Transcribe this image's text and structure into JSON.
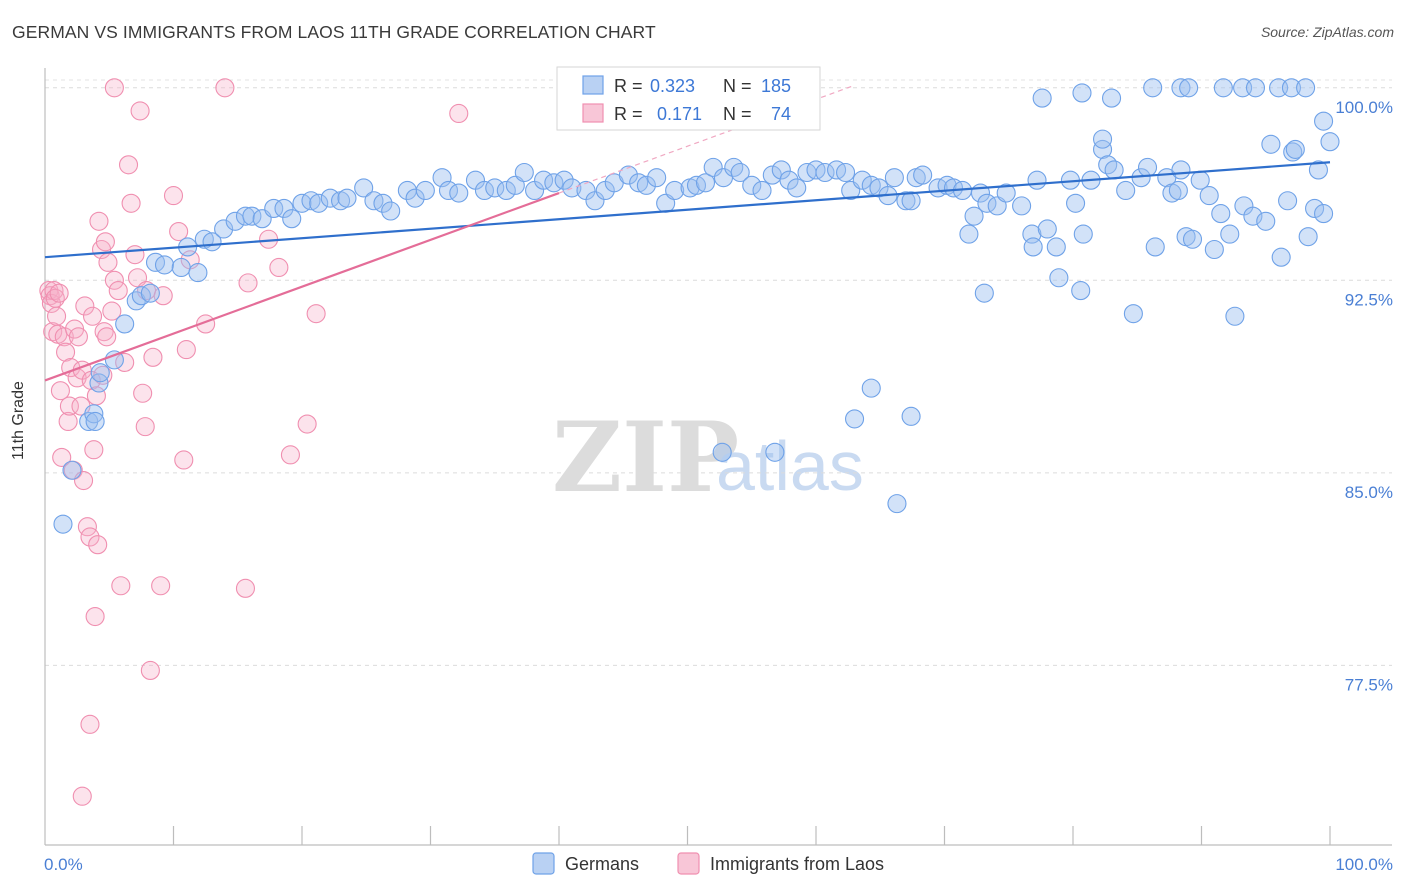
{
  "title": "GERMAN VS IMMIGRANTS FROM LAOS 11TH GRADE CORRELATION CHART",
  "source": "Source: ZipAtlas.com",
  "watermark": {
    "zip": "ZIP",
    "atlas": "atlas"
  },
  "colors": {
    "german": "#6fa2e8",
    "laos": "#f08fb0",
    "german_line": "#2f6fcc",
    "laos_line": "#e46d98",
    "accent": "#4a7fd4"
  },
  "stats": {
    "german": {
      "r_label": "R =",
      "r_value": "0.323",
      "n_label": "N =",
      "n_value": "185"
    },
    "laos": {
      "r_label": "R =",
      "r_value": "0.171",
      "n_label": "N =",
      "n_value": "74"
    }
  },
  "legend": {
    "german": "Germans",
    "laos": "Immigrants from Laos"
  },
  "chart_data": {
    "type": "scatter",
    "title": "GERMAN VS IMMIGRANTS FROM LAOS 11TH GRADE CORRELATION CHART",
    "xlabel": "",
    "ylabel": "11th Grade",
    "xlim": [
      0,
      100
    ],
    "ylim": [
      70.5,
      101.2
    ],
    "x_tick_labels": [
      "0.0%",
      "100.0%"
    ],
    "y_ticks": [
      77.5,
      85.0,
      92.5,
      100.0
    ],
    "y_tick_labels": [
      "77.5%",
      "85.0%",
      "92.5%",
      "100.0%"
    ],
    "grid": true,
    "legend_position": "bottom-center",
    "series": [
      {
        "name": "Germans",
        "r": 0.323,
        "n": 185,
        "trend": {
          "x": [
            0,
            100
          ],
          "y": [
            93.4,
            97.1
          ]
        },
        "points": [
          [
            1.4,
            83.0
          ],
          [
            2.1,
            85.1
          ],
          [
            3.4,
            87.0
          ],
          [
            3.8,
            87.3
          ],
          [
            3.9,
            87.0
          ],
          [
            4.2,
            88.5
          ],
          [
            4.3,
            88.9
          ],
          [
            5.4,
            89.4
          ],
          [
            6.2,
            90.8
          ],
          [
            7.1,
            91.7
          ],
          [
            7.5,
            91.9
          ],
          [
            8.2,
            92.0
          ],
          [
            8.6,
            93.2
          ],
          [
            9.3,
            93.1
          ],
          [
            10.6,
            93.0
          ],
          [
            11.1,
            93.8
          ],
          [
            11.9,
            92.8
          ],
          [
            12.4,
            94.1
          ],
          [
            13.0,
            94.0
          ],
          [
            13.9,
            94.5
          ],
          [
            14.8,
            94.8
          ],
          [
            15.6,
            95.0
          ],
          [
            16.1,
            95.0
          ],
          [
            16.9,
            94.9
          ],
          [
            17.8,
            95.3
          ],
          [
            18.6,
            95.3
          ],
          [
            19.2,
            94.9
          ],
          [
            20.0,
            95.5
          ],
          [
            20.7,
            95.6
          ],
          [
            21.3,
            95.5
          ],
          [
            22.2,
            95.7
          ],
          [
            23.0,
            95.6
          ],
          [
            23.5,
            95.7
          ],
          [
            24.8,
            96.1
          ],
          [
            25.6,
            95.6
          ],
          [
            26.3,
            95.5
          ],
          [
            26.9,
            95.2
          ],
          [
            28.2,
            96.0
          ],
          [
            28.8,
            95.7
          ],
          [
            29.6,
            96.0
          ],
          [
            30.9,
            96.5
          ],
          [
            31.4,
            96.0
          ],
          [
            32.2,
            95.9
          ],
          [
            33.5,
            96.4
          ],
          [
            34.2,
            96.0
          ],
          [
            35.0,
            96.1
          ],
          [
            35.9,
            96.0
          ],
          [
            36.6,
            96.2
          ],
          [
            37.3,
            96.7
          ],
          [
            38.1,
            96.0
          ],
          [
            38.8,
            96.4
          ],
          [
            39.6,
            96.3
          ],
          [
            40.4,
            96.4
          ],
          [
            41.0,
            96.1
          ],
          [
            42.1,
            96.0
          ],
          [
            42.8,
            95.6
          ],
          [
            43.6,
            96.0
          ],
          [
            44.3,
            96.3
          ],
          [
            45.4,
            96.6
          ],
          [
            46.2,
            96.3
          ],
          [
            46.8,
            96.2
          ],
          [
            47.6,
            96.5
          ],
          [
            48.3,
            95.5
          ],
          [
            49.0,
            96.0
          ],
          [
            50.2,
            96.1
          ],
          [
            50.7,
            96.2
          ],
          [
            51.4,
            96.3
          ],
          [
            52.0,
            96.9
          ],
          [
            52.8,
            96.5
          ],
          [
            53.6,
            96.9
          ],
          [
            54.1,
            96.7
          ],
          [
            55.0,
            96.2
          ],
          [
            55.8,
            96.0
          ],
          [
            56.6,
            96.6
          ],
          [
            57.3,
            96.8
          ],
          [
            57.9,
            96.4
          ],
          [
            58.5,
            96.1
          ],
          [
            59.3,
            96.7
          ],
          [
            60.0,
            96.8
          ],
          [
            60.7,
            96.7
          ],
          [
            61.6,
            96.8
          ],
          [
            62.3,
            96.7
          ],
          [
            62.7,
            96.0
          ],
          [
            63.6,
            96.4
          ],
          [
            64.3,
            96.2
          ],
          [
            64.9,
            96.1
          ],
          [
            65.6,
            95.8
          ],
          [
            66.1,
            96.5
          ],
          [
            67.0,
            95.6
          ],
          [
            67.4,
            95.6
          ],
          [
            67.8,
            96.5
          ],
          [
            68.3,
            96.6
          ],
          [
            69.5,
            96.1
          ],
          [
            70.2,
            96.2
          ],
          [
            70.7,
            96.1
          ],
          [
            71.4,
            96.0
          ],
          [
            72.3,
            95.0
          ],
          [
            72.8,
            95.9
          ],
          [
            73.3,
            95.5
          ],
          [
            74.1,
            95.4
          ],
          [
            74.8,
            95.9
          ],
          [
            76.0,
            95.4
          ],
          [
            76.8,
            94.3
          ],
          [
            77.2,
            96.4
          ],
          [
            78.0,
            94.5
          ],
          [
            78.7,
            93.8
          ],
          [
            78.9,
            92.6
          ],
          [
            79.8,
            96.4
          ],
          [
            80.2,
            95.5
          ],
          [
            80.8,
            94.3
          ],
          [
            81.4,
            96.4
          ],
          [
            82.3,
            97.6
          ],
          [
            82.7,
            97.0
          ],
          [
            83.2,
            96.8
          ],
          [
            84.1,
            96.0
          ],
          [
            84.7,
            91.2
          ],
          [
            85.3,
            96.5
          ],
          [
            85.8,
            96.9
          ],
          [
            86.4,
            93.8
          ],
          [
            87.3,
            96.5
          ],
          [
            87.7,
            95.9
          ],
          [
            88.2,
            96.0
          ],
          [
            88.4,
            96.8
          ],
          [
            88.8,
            94.2
          ],
          [
            89.3,
            94.1
          ],
          [
            89.9,
            96.4
          ],
          [
            90.6,
            95.8
          ],
          [
            91.0,
            93.7
          ],
          [
            91.5,
            95.1
          ],
          [
            92.2,
            94.3
          ],
          [
            92.6,
            91.1
          ],
          [
            93.3,
            95.4
          ],
          [
            94.0,
            95.0
          ],
          [
            95.0,
            94.8
          ],
          [
            95.4,
            97.8
          ],
          [
            96.2,
            93.4
          ],
          [
            96.7,
            95.6
          ],
          [
            97.1,
            97.5
          ],
          [
            97.3,
            97.6
          ],
          [
            98.3,
            94.2
          ],
          [
            98.8,
            95.3
          ],
          [
            99.1,
            96.8
          ],
          [
            99.5,
            95.1
          ],
          [
            100.0,
            97.9
          ],
          [
            52.7,
            85.8
          ],
          [
            56.8,
            85.8
          ],
          [
            63.0,
            87.1
          ],
          [
            64.3,
            88.3
          ],
          [
            66.3,
            83.8
          ],
          [
            67.4,
            87.2
          ],
          [
            71.9,
            94.3
          ],
          [
            73.1,
            92.0
          ],
          [
            76.9,
            93.8
          ],
          [
            80.6,
            92.1
          ],
          [
            82.3,
            98.0
          ],
          [
            77.6,
            99.6
          ],
          [
            80.7,
            99.8
          ],
          [
            83.0,
            99.6
          ],
          [
            86.2,
            100.0
          ],
          [
            88.4,
            100.0
          ],
          [
            89.0,
            100.0
          ],
          [
            91.7,
            100.0
          ],
          [
            93.2,
            100.0
          ],
          [
            94.2,
            100.0
          ],
          [
            96.0,
            100.0
          ],
          [
            97.0,
            100.0
          ],
          [
            98.1,
            100.0
          ],
          [
            99.5,
            98.7
          ]
        ]
      },
      {
        "name": "Immigrants from Laos",
        "r": 0.171,
        "n": 74,
        "trend": {
          "x": [
            0,
            40
          ],
          "y": [
            88.6,
            95.9
          ]
        },
        "points": [
          [
            0.3,
            92.1
          ],
          [
            0.4,
            91.9
          ],
          [
            0.5,
            91.6
          ],
          [
            0.6,
            90.5
          ],
          [
            0.7,
            92.1
          ],
          [
            0.8,
            91.8
          ],
          [
            0.9,
            91.1
          ],
          [
            1.0,
            90.4
          ],
          [
            1.1,
            92.0
          ],
          [
            1.2,
            88.2
          ],
          [
            1.3,
            85.6
          ],
          [
            1.5,
            90.3
          ],
          [
            1.6,
            89.7
          ],
          [
            1.8,
            87.0
          ],
          [
            1.9,
            87.6
          ],
          [
            2.0,
            89.1
          ],
          [
            2.2,
            85.1
          ],
          [
            2.3,
            90.6
          ],
          [
            2.5,
            88.7
          ],
          [
            2.6,
            90.3
          ],
          [
            2.8,
            87.6
          ],
          [
            2.9,
            89.0
          ],
          [
            3.0,
            84.7
          ],
          [
            3.1,
            91.5
          ],
          [
            3.3,
            82.9
          ],
          [
            3.5,
            82.5
          ],
          [
            3.6,
            88.6
          ],
          [
            3.7,
            91.1
          ],
          [
            3.8,
            85.9
          ],
          [
            3.9,
            79.4
          ],
          [
            4.0,
            88.0
          ],
          [
            4.1,
            82.2
          ],
          [
            4.2,
            94.8
          ],
          [
            4.4,
            93.7
          ],
          [
            4.5,
            88.8
          ],
          [
            4.6,
            90.5
          ],
          [
            4.7,
            94.0
          ],
          [
            4.8,
            90.3
          ],
          [
            4.9,
            93.2
          ],
          [
            5.2,
            91.3
          ],
          [
            5.4,
            92.5
          ],
          [
            5.7,
            92.1
          ],
          [
            5.9,
            80.6
          ],
          [
            6.2,
            89.3
          ],
          [
            6.5,
            97.0
          ],
          [
            6.7,
            95.5
          ],
          [
            7.0,
            93.5
          ],
          [
            7.2,
            92.6
          ],
          [
            7.6,
            88.1
          ],
          [
            7.8,
            86.8
          ],
          [
            7.9,
            92.1
          ],
          [
            8.2,
            77.3
          ],
          [
            8.4,
            89.5
          ],
          [
            9.0,
            80.6
          ],
          [
            9.2,
            91.9
          ],
          [
            10.0,
            95.8
          ],
          [
            10.4,
            94.4
          ],
          [
            10.8,
            85.5
          ],
          [
            11.0,
            89.8
          ],
          [
            11.3,
            93.3
          ],
          [
            12.5,
            90.8
          ],
          [
            14.0,
            100.0
          ],
          [
            15.6,
            80.5
          ],
          [
            15.8,
            92.4
          ],
          [
            17.4,
            94.1
          ],
          [
            18.2,
            93.0
          ],
          [
            19.1,
            85.7
          ],
          [
            20.4,
            86.9
          ],
          [
            21.1,
            91.2
          ],
          [
            32.2,
            99.0
          ],
          [
            3.5,
            75.2
          ],
          [
            2.9,
            72.4
          ],
          [
            5.4,
            100.0
          ],
          [
            7.4,
            99.1
          ]
        ]
      }
    ]
  }
}
